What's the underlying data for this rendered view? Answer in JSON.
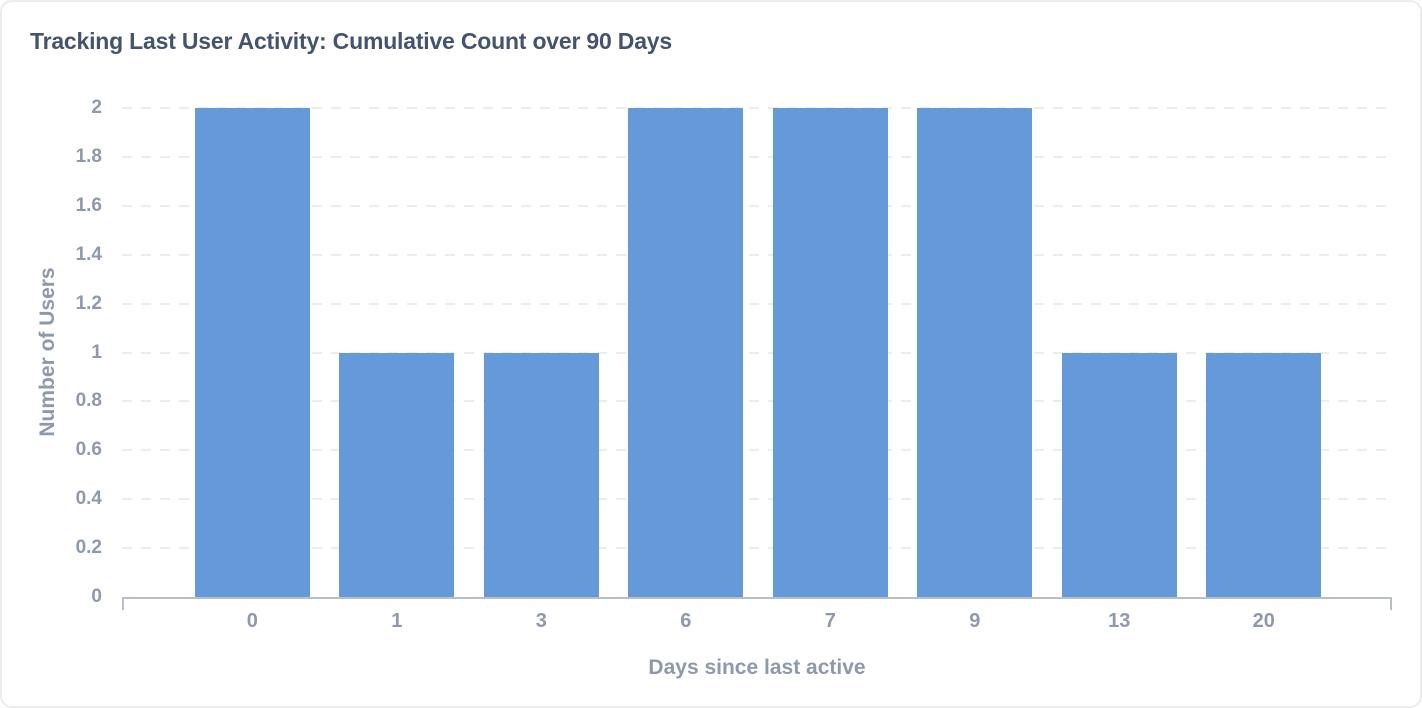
{
  "title": "Tracking Last User Activity: Cumulative Count over 90 Days",
  "chart_data": {
    "type": "bar",
    "title": "Tracking Last User Activity: Cumulative Count over 90 Days",
    "categories": [
      "0",
      "1",
      "3",
      "6",
      "7",
      "9",
      "13",
      "20"
    ],
    "values": [
      2,
      1,
      1,
      2,
      2,
      2,
      1,
      1
    ],
    "xlabel": "Days since last active",
    "ylabel": "Number of Users",
    "ylim": [
      0,
      2
    ],
    "yticks": [
      0,
      0.2,
      0.4,
      0.6,
      0.8,
      1,
      1.2,
      1.4,
      1.6,
      1.8,
      2
    ],
    "ytick_labels": [
      "0",
      "0.2",
      "0.4",
      "0.6",
      "0.8",
      "1",
      "1.2",
      "1.4",
      "1.6",
      "1.8",
      "2"
    ],
    "grid": "horizontal-dashed",
    "legend": "none",
    "series_count": 1
  },
  "colors": {
    "bar": "#6499da",
    "title": "#44546e",
    "axis_text": "#8e99ab",
    "gridline": "#ececf0",
    "axis_line": "#b9bfc9",
    "card_border": "#ececec",
    "background": "#ffffff"
  }
}
